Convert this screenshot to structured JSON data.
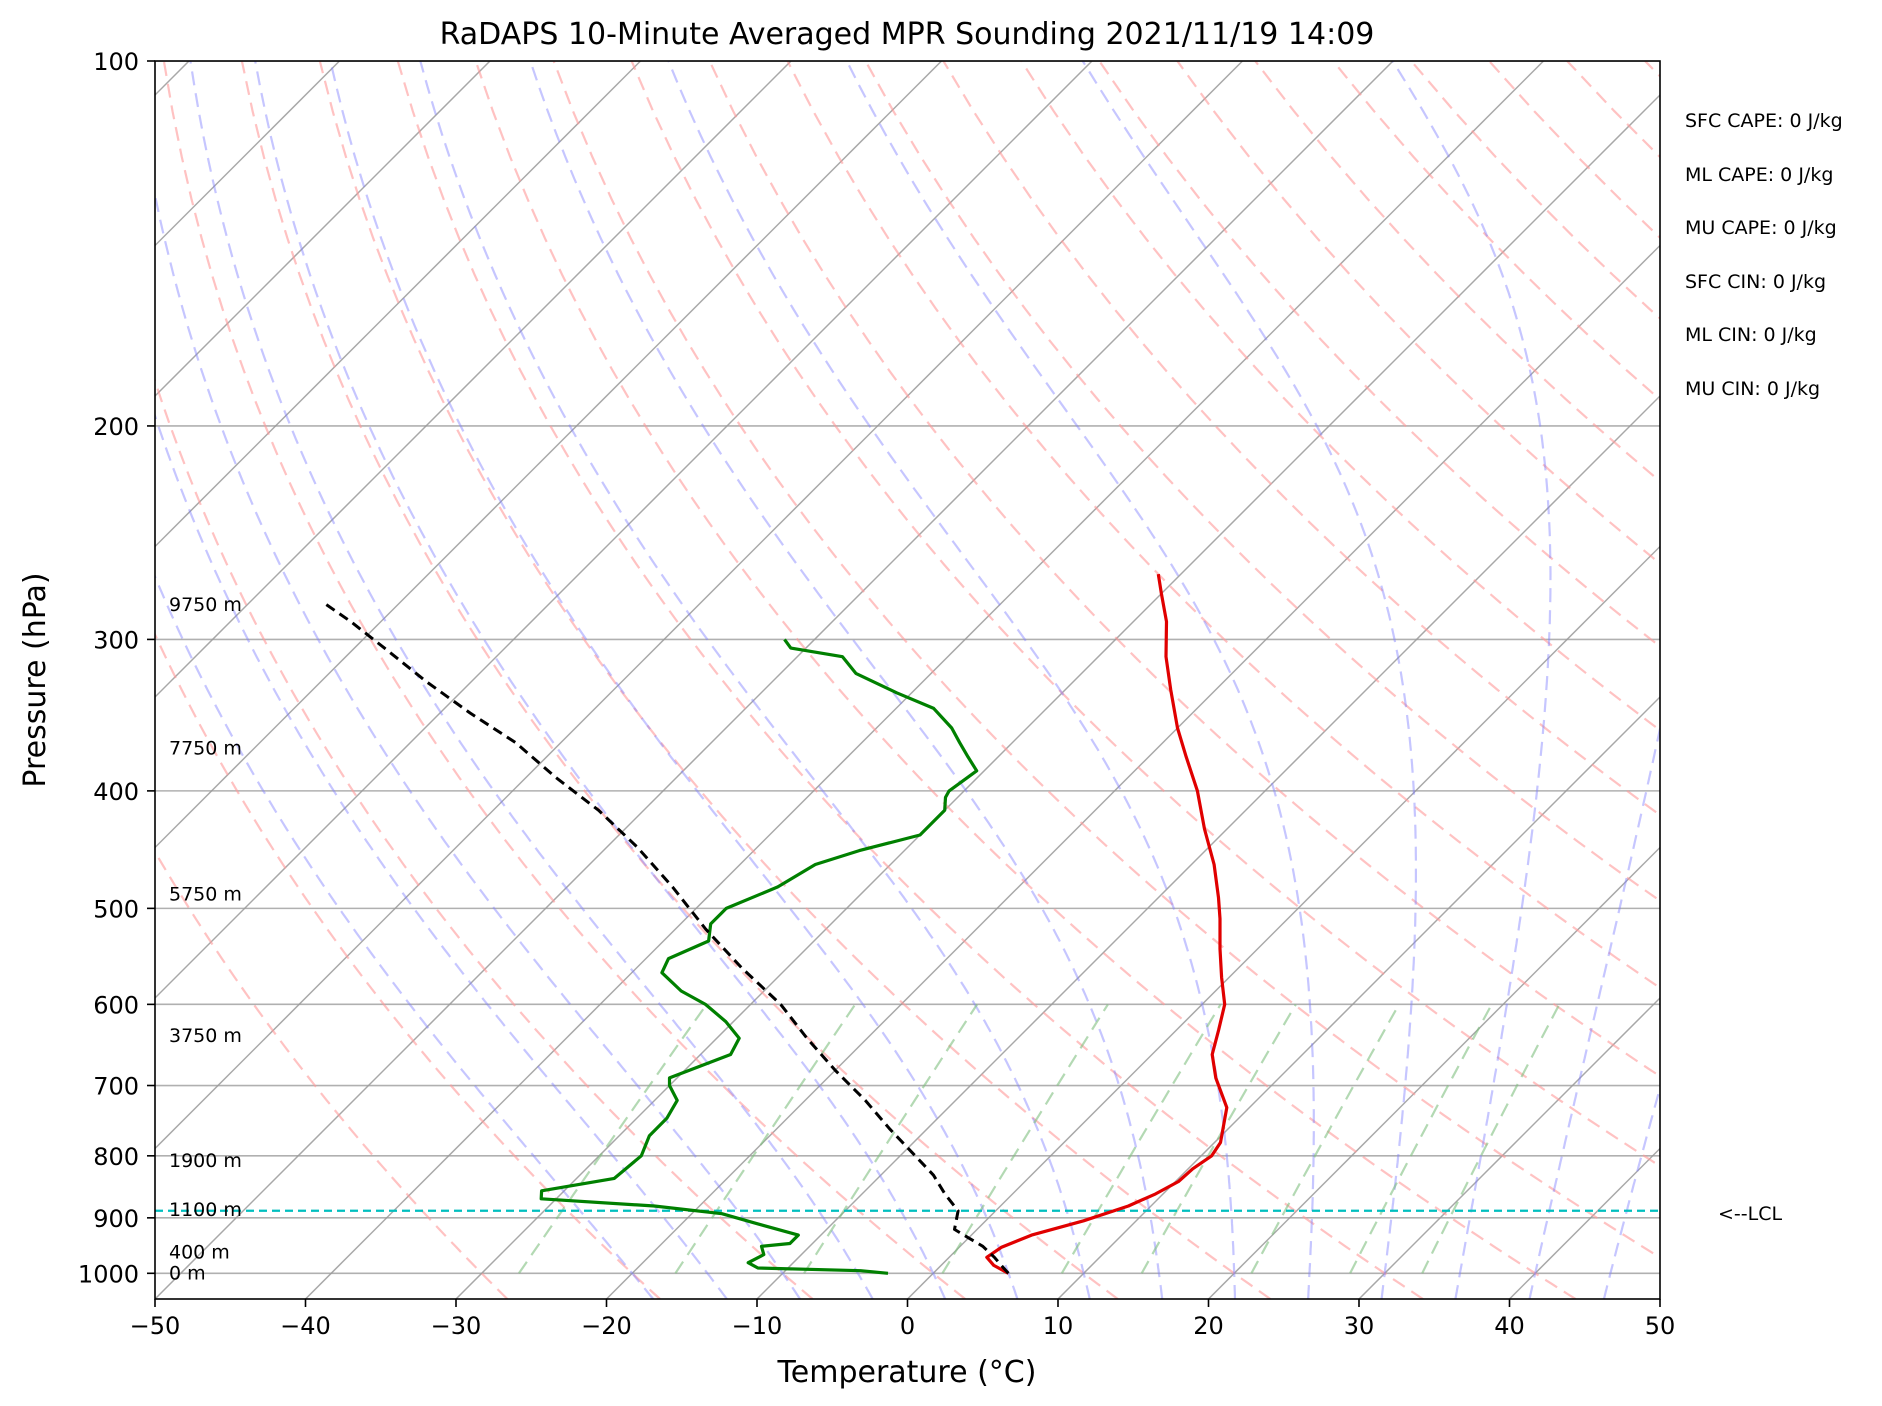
{
  "chart_data": {
    "type": "line",
    "title": "RaDAPS 10-Minute Averaged MPR Sounding 2021/11/19 14:09",
    "xlabel": "Temperature (°C)",
    "ylabel": "Pressure (hPa)",
    "xlim": [
      -50,
      50
    ],
    "ylim": [
      1050,
      100
    ],
    "y_scale": "log",
    "x_ticks": [
      -50,
      -40,
      -30,
      -20,
      -10,
      0,
      10,
      20,
      30,
      40,
      50
    ],
    "x_tick_labels": [
      "−50",
      "−40",
      "−30",
      "−20",
      "−10",
      "0",
      "10",
      "20",
      "30",
      "40",
      "50"
    ],
    "y_ticks": [
      100,
      200,
      300,
      400,
      500,
      600,
      700,
      800,
      900,
      1000
    ],
    "y_tick_labels": [
      "100",
      "200",
      "300",
      "400",
      "500",
      "600",
      "700",
      "800",
      "900",
      "1000"
    ],
    "grid": true,
    "skew": "skew-T log-P",
    "colors": {
      "temperature": "#e00000",
      "dewpoint": "#008000",
      "parcel": "#000000",
      "lcl": "#00bfbf",
      "dry_adiabat": "#ff9999",
      "moist_adiabat": "#8080ff",
      "mixing_ratio": "#80c080",
      "isotherm": "#999999"
    },
    "series": [
      {
        "kind": "temperature",
        "points": [
          [
            5.0,
            1000
          ],
          [
            3.5,
            985
          ],
          [
            2.5,
            970
          ],
          [
            2.8,
            952
          ],
          [
            4.0,
            930
          ],
          [
            6.5,
            905
          ],
          [
            8.5,
            880
          ],
          [
            9.5,
            860
          ],
          [
            10.2,
            840
          ],
          [
            10.3,
            820
          ],
          [
            10.7,
            800
          ],
          [
            10.4,
            780
          ],
          [
            8.5,
            730
          ],
          [
            5.8,
            690
          ],
          [
            4.0,
            660
          ],
          [
            2.8,
            630
          ],
          [
            1.5,
            600
          ],
          [
            -0.5,
            570
          ],
          [
            -2.5,
            540
          ],
          [
            -4.5,
            510
          ],
          [
            -6.0,
            490
          ],
          [
            -8.5,
            460
          ],
          [
            -11.5,
            430
          ],
          [
            -14.5,
            400
          ],
          [
            -17.5,
            375
          ],
          [
            -20.0,
            355
          ],
          [
            -23.0,
            330
          ],
          [
            -25.5,
            310
          ],
          [
            -27.8,
            290
          ],
          [
            -30.0,
            275
          ],
          [
            -31.5,
            265
          ]
        ]
      },
      {
        "kind": "dewpoint",
        "points": [
          [
            -3,
            1000
          ],
          [
            -5,
            995
          ],
          [
            -12,
            990
          ],
          [
            -13,
            980
          ],
          [
            -12.5,
            965
          ],
          [
            -13.2,
            950
          ],
          [
            -11.5,
            945
          ],
          [
            -11.5,
            930
          ],
          [
            -15.0,
            910
          ],
          [
            -18.0,
            893
          ],
          [
            -23.0,
            880
          ],
          [
            -31.0,
            868
          ],
          [
            -31.5,
            855
          ],
          [
            -27.5,
            835
          ],
          [
            -27.2,
            800
          ],
          [
            -28.0,
            770
          ],
          [
            -28.0,
            745
          ],
          [
            -28.5,
            720
          ],
          [
            -30.0,
            700
          ],
          [
            -30.5,
            690
          ],
          [
            -28.0,
            660
          ],
          [
            -28.5,
            640
          ],
          [
            -30.5,
            620
          ],
          [
            -33.0,
            600
          ],
          [
            -35.5,
            585
          ],
          [
            -38.0,
            565
          ],
          [
            -38.5,
            550
          ],
          [
            -37.0,
            532
          ],
          [
            -38.0,
            515
          ],
          [
            -38.0,
            505
          ],
          [
            -38.0,
            500
          ],
          [
            -36.0,
            480
          ],
          [
            -35.0,
            460
          ],
          [
            -33.0,
            448
          ],
          [
            -30.0,
            435
          ],
          [
            -30.0,
            415
          ],
          [
            -30.8,
            405
          ],
          [
            -31.0,
            400
          ],
          [
            -30.5,
            385
          ],
          [
            -32.0,
            375
          ],
          [
            -33.5,
            365
          ],
          [
            -35.0,
            355
          ],
          [
            -37.5,
            342
          ],
          [
            -41.0,
            332
          ],
          [
            -45.0,
            320
          ],
          [
            -47.0,
            310
          ],
          [
            -51.0,
            305
          ],
          [
            -52.0,
            300
          ]
        ]
      },
      {
        "kind": "parcel",
        "points": [
          [
            5,
            1000
          ],
          [
            4,
            985
          ],
          [
            3,
            970
          ],
          [
            1.5,
            950
          ],
          [
            0,
            935
          ],
          [
            -1.5,
            920
          ],
          [
            -2.5,
            888
          ],
          [
            -4.5,
            860
          ],
          [
            -6.5,
            830
          ],
          [
            -9,
            800
          ],
          [
            -12.5,
            760
          ],
          [
            -16,
            720
          ],
          [
            -20,
            680
          ],
          [
            -24,
            640
          ],
          [
            -28,
            600
          ],
          [
            -33,
            560
          ],
          [
            -38,
            520
          ],
          [
            -43,
            480
          ],
          [
            -48,
            445
          ],
          [
            -53,
            415
          ],
          [
            -58,
            390
          ],
          [
            -63,
            365
          ],
          [
            -68,
            345
          ],
          [
            -73,
            325
          ],
          [
            -78,
            305
          ],
          [
            -82,
            290
          ],
          [
            -85,
            280
          ]
        ]
      }
    ],
    "lcl_pressure": 888,
    "lcl_label": "<--LCL",
    "height_labels": [
      {
        "text": "9750 m",
        "p": 281
      },
      {
        "text": "7750 m",
        "p": 369
      },
      {
        "text": "5750 m",
        "p": 487
      },
      {
        "text": "3750 m",
        "p": 637
      },
      {
        "text": "1900 m",
        "p": 808
      },
      {
        "text": "1100 m",
        "p": 887
      },
      {
        "text": "400 m",
        "p": 961
      },
      {
        "text": "0 m",
        "p": 1000
      }
    ],
    "mixing_ratio_values": [
      0.4,
      1,
      2,
      4,
      7,
      10,
      16,
      24,
      32
    ],
    "mixing_ratio_levels": [
      1000,
      600
    ]
  },
  "stats": [
    "SFC CAPE: 0 J/kg",
    "ML CAPE: 0 J/kg",
    "MU CAPE: 0 J/kg",
    "SFC CIN: 0 J/kg",
    "ML CIN: 0 J/kg",
    "MU CIN: 0 J/kg"
  ]
}
